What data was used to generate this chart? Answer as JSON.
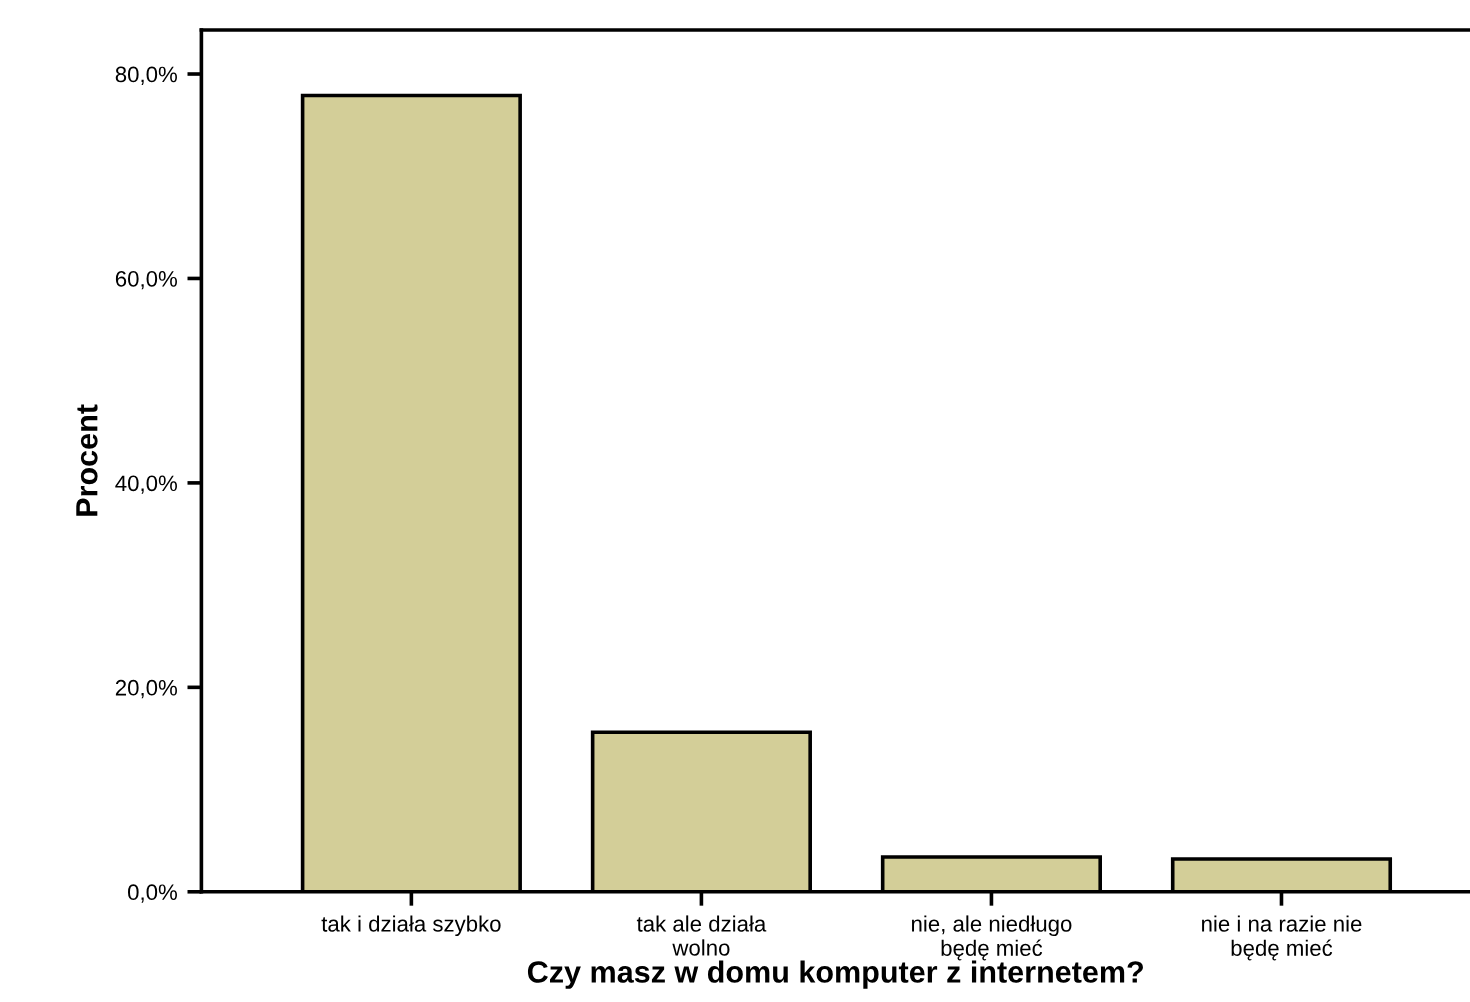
{
  "chart_data": {
    "type": "bar",
    "xlabel": "Czy masz w domu komputer z internetem?",
    "ylabel": "Procent",
    "categories": [
      "tak i działa szybko",
      "tak ale działa\nwolno",
      "nie, ale niedługo\nbędę mieć",
      "nie i na razie nie\nbędę mieć"
    ],
    "values": [
      77.9,
      15.6,
      3.4,
      3.2
    ],
    "color": "#d3ce98",
    "ylim": [
      0,
      84.3
    ],
    "yticks": [
      {
        "value": 0,
        "label": "0,0%"
      },
      {
        "value": 20,
        "label": "20,0%"
      },
      {
        "value": 40,
        "label": "40,0%"
      },
      {
        "value": 60,
        "label": "60,0%"
      },
      {
        "value": 80,
        "label": "80,0%"
      }
    ],
    "grid": false,
    "legend": false
  }
}
